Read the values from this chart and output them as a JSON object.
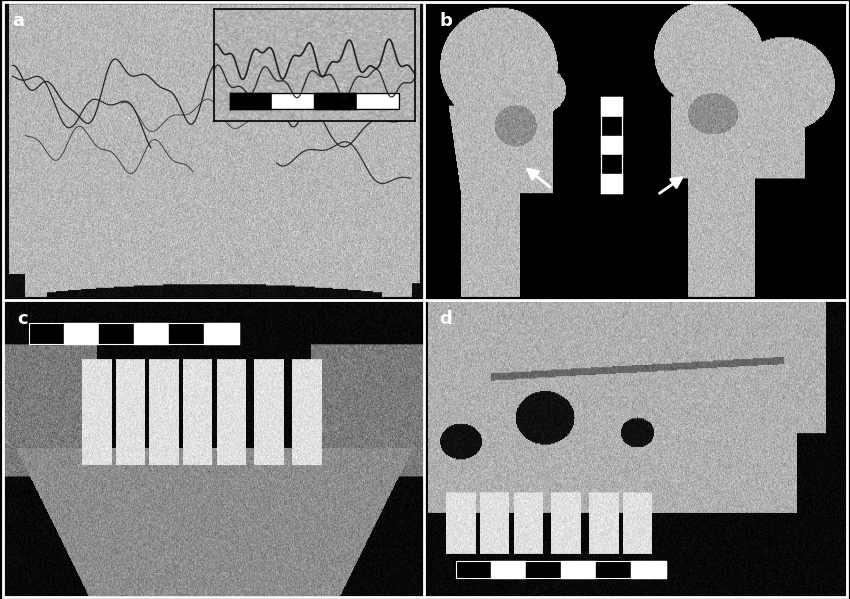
{
  "figure_width": 8.5,
  "figure_height": 5.99,
  "dpi": 100,
  "background_color": "#000000",
  "border_color": "#ffffff",
  "label_color": "#ffffff",
  "label_bg_color": "#000000",
  "label_fontsize": 13,
  "label_fontweight": "bold",
  "panel_positions": {
    "a": [
      0.005,
      0.502,
      0.493,
      0.493
    ],
    "b": [
      0.502,
      0.502,
      0.493,
      0.493
    ],
    "c": [
      0.005,
      0.005,
      0.493,
      0.493
    ],
    "d": [
      0.502,
      0.005,
      0.493,
      0.493
    ]
  },
  "colors": {
    "bone_light": 0.72,
    "bone_medium": 0.65,
    "bone_dark": 0.55,
    "tooth_light": 0.88,
    "bg_dark": 0.05,
    "bg_black": 0.0
  },
  "noise_std": 0.055
}
